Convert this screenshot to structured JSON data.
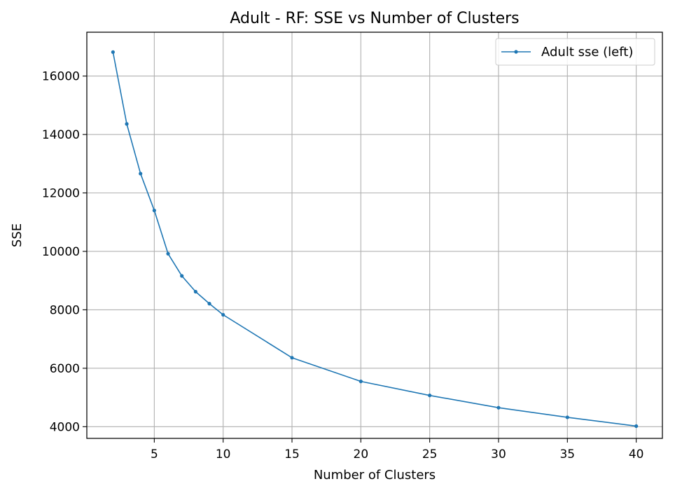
{
  "chart_data": {
    "type": "line",
    "title": "Adult - RF: SSE vs Number of Clusters",
    "xlabel": "Number of Clusters",
    "ylabel": "SSE",
    "xlim": [
      0.1,
      41.9
    ],
    "ylim": [
      3600,
      17500
    ],
    "xticks": [
      5,
      10,
      15,
      20,
      25,
      30,
      35,
      40
    ],
    "yticks": [
      4000,
      6000,
      8000,
      10000,
      12000,
      14000,
      16000
    ],
    "grid": true,
    "legend_position": "top-right",
    "series": [
      {
        "name": "Adult sse (left)",
        "color": "#1f77b4",
        "marker": "point",
        "x": [
          2,
          3,
          4,
          5,
          6,
          7,
          8,
          9,
          10,
          15,
          20,
          25,
          30,
          35,
          40
        ],
        "y": [
          16820,
          14360,
          12660,
          11400,
          9920,
          9160,
          8620,
          8210,
          7830,
          6360,
          5550,
          5070,
          4650,
          4320,
          4020
        ]
      }
    ]
  }
}
